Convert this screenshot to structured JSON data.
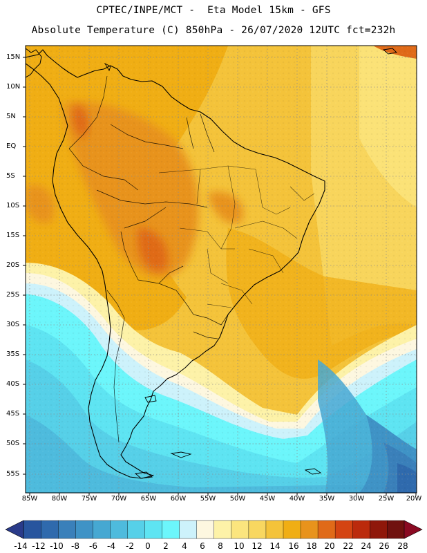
{
  "header": {
    "line1": "CPTEC/INPE/MCT -  Eta Model 15km - GFS",
    "line2": "Absolute Temperature (C) 850hPa - 26/07/2020 12UTC fct=232h"
  },
  "map": {
    "latitude_labels": [
      "15N",
      "10N",
      "5N",
      "EQ",
      "5S",
      "10S",
      "15S",
      "20S",
      "25S",
      "30S",
      "35S",
      "40S",
      "45S",
      "50S",
      "55S"
    ],
    "longitude_labels": [
      "85W",
      "80W",
      "75W",
      "70W",
      "65W",
      "60W",
      "55W",
      "50W",
      "45W",
      "40W",
      "35W",
      "30W",
      "25W",
      "20W"
    ],
    "region": "South America"
  },
  "colorbar": {
    "labels": [
      "-14",
      "-12",
      "-10",
      "-8",
      "-6",
      "-4",
      "-2",
      "0",
      "2",
      "4",
      "6",
      "8",
      "10",
      "12",
      "14",
      "16",
      "18",
      "20",
      "22",
      "24",
      "26",
      "28"
    ],
    "colors": [
      "#1f3f8f",
      "#28559e",
      "#2f6aad",
      "#3a80ba",
      "#3f93c6",
      "#46a8d2",
      "#4ebbdd",
      "#56d0e8",
      "#5ee4f2",
      "#6cf6fb",
      "#cdf2fb",
      "#fdf7e0",
      "#fdf2a8",
      "#fbe57e",
      "#f8d760",
      "#f4c33a",
      "#f0ae14",
      "#e8931c",
      "#e06a18",
      "#d44412",
      "#bb2a0c",
      "#8f170a",
      "#70110f",
      "#8a0a22"
    ],
    "range_min": -14,
    "range_max": 28
  }
}
